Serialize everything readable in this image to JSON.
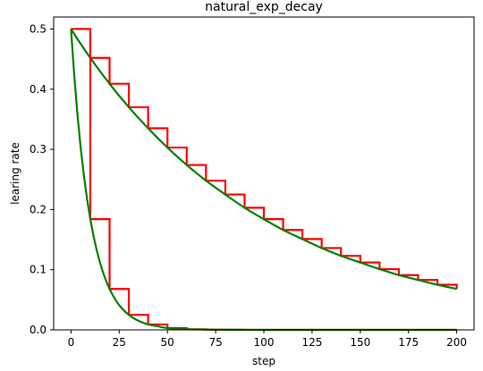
{
  "chart_data": {
    "type": "line",
    "title": "natural_exp_decay",
    "xlabel": "step",
    "ylabel": "learing rate",
    "xlim": [
      -9,
      209
    ],
    "ylim": [
      0,
      0.52
    ],
    "xticks": [
      0,
      25,
      50,
      75,
      100,
      125,
      150,
      175,
      200
    ],
    "yticks": [
      0.0,
      0.1,
      0.2,
      0.3,
      0.4,
      0.5
    ],
    "grid": false,
    "legend": "none",
    "series": [
      {
        "color": "#ff0000",
        "style": "staircase",
        "x": [
          0,
          10,
          20,
          30,
          40,
          50,
          60,
          70,
          80,
          90,
          100,
          110,
          120,
          130,
          140,
          150,
          160,
          170,
          180,
          190,
          200
        ],
        "y": [
          0.5,
          0.452,
          0.409,
          0.37,
          0.335,
          0.303,
          0.274,
          0.248,
          0.225,
          0.203,
          0.184,
          0.166,
          0.151,
          0.136,
          0.123,
          0.112,
          0.101,
          0.091,
          0.083,
          0.075,
          0.068
        ]
      },
      {
        "color": "#008000",
        "style": "smooth",
        "x": [
          0,
          10,
          20,
          30,
          40,
          50,
          60,
          70,
          80,
          90,
          100,
          110,
          120,
          130,
          140,
          150,
          160,
          170,
          180,
          190,
          200
        ],
        "y": [
          0.5,
          0.452,
          0.409,
          0.37,
          0.335,
          0.303,
          0.274,
          0.248,
          0.225,
          0.203,
          0.184,
          0.166,
          0.151,
          0.136,
          0.123,
          0.112,
          0.101,
          0.091,
          0.083,
          0.075,
          0.068
        ]
      },
      {
        "color": "#ff0000",
        "style": "staircase",
        "x": [
          0,
          10,
          20,
          30,
          40,
          50,
          60,
          70,
          80,
          90,
          100,
          110,
          120,
          130,
          140,
          150,
          160,
          170,
          180,
          190,
          200
        ],
        "y": [
          0.5,
          0.184,
          0.068,
          0.025,
          0.009,
          0.003,
          0.001,
          0.0005,
          0.0002,
          0.0001,
          0.0,
          0.0,
          0.0,
          0.0,
          0.0,
          0.0,
          0.0,
          0.0,
          0.0,
          0.0,
          0.0
        ]
      },
      {
        "color": "#008000",
        "style": "smooth",
        "x": [
          0,
          5,
          10,
          15,
          20,
          25,
          30,
          35,
          40,
          45,
          50,
          60,
          70,
          80,
          90,
          100,
          120,
          140,
          160,
          180,
          200
        ],
        "y": [
          0.5,
          0.303,
          0.184,
          0.112,
          0.068,
          0.041,
          0.025,
          0.015,
          0.009,
          0.006,
          0.003,
          0.001,
          0.0005,
          0.0002,
          0.0001,
          0.0,
          0.0,
          0.0,
          0.0,
          0.0,
          0.0
        ]
      }
    ]
  }
}
